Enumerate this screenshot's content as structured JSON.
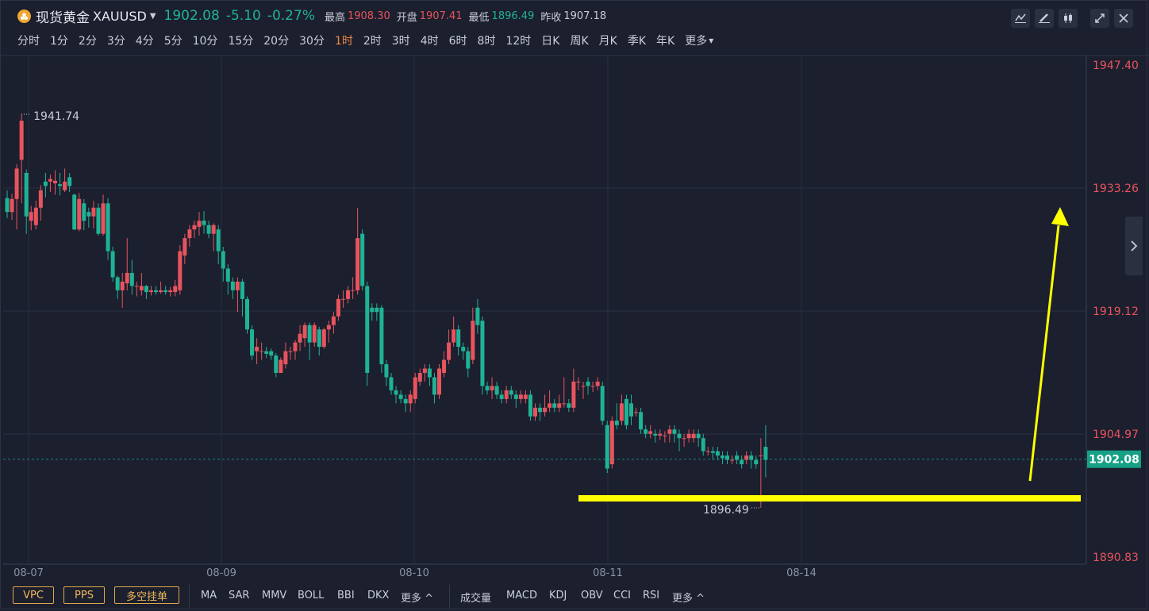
{
  "header": {
    "symbol_name": "现货黄金",
    "symbol_code": "XAUUSD",
    "price": "1902.08",
    "change": "-5.10",
    "change_pct": "-0.27%",
    "high_label": "最高",
    "high": "1908.30",
    "open_label": "开盘",
    "open": "1907.41",
    "low_label": "最低",
    "low": "1896.49",
    "prev_close_label": "昨收",
    "prev_close": "1907.18"
  },
  "toolbar": {
    "icons": [
      "line-chart-icon",
      "draw-pen-icon",
      "candlestick-icon",
      "fullscreen-icon",
      "close-icon"
    ]
  },
  "periods": {
    "items": [
      "分时",
      "1分",
      "2分",
      "3分",
      "4分",
      "5分",
      "10分",
      "15分",
      "20分",
      "30分",
      "1时",
      "2时",
      "3时",
      "4时",
      "6时",
      "8时",
      "12时",
      "日K",
      "周K",
      "月K",
      "季K",
      "年K",
      "更多"
    ],
    "active": "1时"
  },
  "chart_data": {
    "type": "candlestick",
    "y_ticks": [
      "1947.40",
      "1933.26",
      "1919.12",
      "1904.97",
      "1890.83"
    ],
    "ylim": [
      1890.83,
      1947.4
    ],
    "x_ticks": [
      "08-07",
      "08-09",
      "08-10",
      "08-11",
      "08-14"
    ],
    "current_price": "1902.08",
    "period_high_label": "1941.74",
    "period_low_label": "1896.49",
    "colors": {
      "up": "#e8545e",
      "down": "#1fb396",
      "annotation": "#ffff00",
      "grid": "#283040"
    },
    "candles": [
      [
        1932.1,
        1930.5,
        1933.0,
        1929.8
      ],
      [
        1930.5,
        1932.0,
        1932.6,
        1929.6
      ],
      [
        1932.0,
        1935.5,
        1936.0,
        1928.5
      ],
      [
        1936.5,
        1941.0,
        1941.7,
        1931.5
      ],
      [
        1935.0,
        1930.0,
        1935.4,
        1928.0
      ],
      [
        1929.5,
        1930.5,
        1931.2,
        1928.4
      ],
      [
        1929.0,
        1931.0,
        1931.8,
        1928.5
      ],
      [
        1931.0,
        1933.0,
        1933.6,
        1929.5
      ],
      [
        1934.0,
        1933.5,
        1935.0,
        1932.2
      ],
      [
        1934.0,
        1934.3,
        1934.8,
        1932.8
      ],
      [
        1933.8,
        1934.1,
        1935.3,
        1932.5
      ],
      [
        1933.7,
        1933.5,
        1935.0,
        1932.4
      ],
      [
        1933.0,
        1934.0,
        1935.5,
        1932.8
      ],
      [
        1934.5,
        1933.5,
        1935.0,
        1932.8
      ],
      [
        1932.5,
        1928.5,
        1932.6,
        1928.4
      ],
      [
        1928.5,
        1932.0,
        1932.7,
        1928.3
      ],
      [
        1931.5,
        1929.5,
        1932.0,
        1928.4
      ],
      [
        1930.5,
        1930.0,
        1931.0,
        1928.7
      ],
      [
        1930.0,
        1931.0,
        1931.8,
        1928.6
      ],
      [
        1931.0,
        1928.0,
        1931.5,
        1927.8
      ],
      [
        1928.0,
        1931.5,
        1932.5,
        1927.8
      ],
      [
        1931.5,
        1926.0,
        1932.1,
        1925.0
      ],
      [
        1926.0,
        1923.0,
        1926.5,
        1922.5
      ],
      [
        1923.0,
        1921.5,
        1923.2,
        1920.5
      ],
      [
        1921.5,
        1922.5,
        1923.5,
        1919.5
      ],
      [
        1922.3,
        1923.5,
        1927.5,
        1921.5
      ],
      [
        1923.5,
        1922.0,
        1925.0,
        1921.0
      ],
      [
        1922.0,
        1922.0,
        1922.5,
        1920.8
      ],
      [
        1921.5,
        1922.0,
        1923.5,
        1920.9
      ],
      [
        1922.0,
        1921.3,
        1922.1,
        1920.5
      ],
      [
        1921.3,
        1921.5,
        1922.0,
        1920.9
      ],
      [
        1921.5,
        1921.3,
        1922.0,
        1921.0
      ],
      [
        1921.3,
        1921.5,
        1922.5,
        1921.1
      ],
      [
        1921.5,
        1921.3,
        1922.0,
        1921.0
      ],
      [
        1921.3,
        1921.5,
        1921.9,
        1920.8
      ],
      [
        1921.3,
        1922.0,
        1922.7,
        1920.8
      ],
      [
        1921.5,
        1926.0,
        1926.7,
        1921.0
      ],
      [
        1925.5,
        1927.5,
        1928.0,
        1924.5
      ],
      [
        1927.5,
        1928.5,
        1929.0,
        1926.5
      ],
      [
        1928.5,
        1929.0,
        1929.5,
        1927.5
      ],
      [
        1928.8,
        1929.5,
        1930.5,
        1927.8
      ],
      [
        1929.5,
        1929.0,
        1930.6,
        1928.0
      ],
      [
        1929.0,
        1928.0,
        1929.5,
        1927.5
      ],
      [
        1928.0,
        1929.0,
        1929.2,
        1926.0
      ],
      [
        1928.5,
        1926.0,
        1929.0,
        1924.5
      ],
      [
        1926.0,
        1924.0,
        1926.5,
        1922.5
      ],
      [
        1924.0,
        1922.5,
        1924.5,
        1921.0
      ],
      [
        1922.5,
        1921.5,
        1923.0,
        1920.5
      ],
      [
        1921.5,
        1922.5,
        1923.0,
        1919.0
      ],
      [
        1922.5,
        1920.5,
        1922.8,
        1918.5
      ],
      [
        1920.5,
        1917.0,
        1920.8,
        1916.5
      ],
      [
        1917.0,
        1914.0,
        1917.5,
        1913.5
      ],
      [
        1914.5,
        1915.0,
        1916.0,
        1913.0
      ],
      [
        1914.5,
        1914.5,
        1915.5,
        1913.5
      ],
      [
        1914.5,
        1914.2,
        1915.0,
        1913.7
      ],
      [
        1914.5,
        1914.0,
        1914.8,
        1913.5
      ],
      [
        1914.0,
        1912.0,
        1914.3,
        1911.5
      ],
      [
        1912.0,
        1913.5,
        1913.8,
        1912.0
      ],
      [
        1913.0,
        1914.5,
        1915.5,
        1912.5
      ],
      [
        1914.5,
        1914.5,
        1915.0,
        1913.5
      ],
      [
        1914.5,
        1915.5,
        1915.8,
        1913.5
      ],
      [
        1915.5,
        1916.5,
        1917.5,
        1914.5
      ],
      [
        1916.0,
        1917.5,
        1917.8,
        1915.0
      ],
      [
        1917.5,
        1915.5,
        1917.8,
        1913.5
      ],
      [
        1915.5,
        1917.5,
        1917.8,
        1915.0
      ],
      [
        1917.0,
        1915.0,
        1917.3,
        1914.0
      ],
      [
        1915.0,
        1917.0,
        1917.2,
        1914.8
      ],
      [
        1917.0,
        1917.5,
        1918.0,
        1915.5
      ],
      [
        1917.5,
        1918.5,
        1919.0,
        1916.5
      ],
      [
        1918.5,
        1920.5,
        1921.0,
        1918.0
      ],
      [
        1920.5,
        1920.5,
        1921.5,
        1919.5
      ],
      [
        1920.5,
        1921.5,
        1922.0,
        1920.0
      ],
      [
        1921.5,
        1921.5,
        1923.0,
        1920.5
      ],
      [
        1921.5,
        1927.5,
        1931.0,
        1921.0
      ],
      [
        1928.0,
        1922.0,
        1928.5,
        1921.5
      ],
      [
        1922.0,
        1912.0,
        1922.5,
        1910.5
      ],
      [
        1919.5,
        1919.0,
        1920.0,
        1918.0
      ],
      [
        1919.5,
        1919.0,
        1920.0,
        1918.0
      ],
      [
        1919.5,
        1913.0,
        1919.8,
        1912.0
      ],
      [
        1913.0,
        1911.5,
        1913.5,
        1910.5
      ],
      [
        1911.5,
        1910.0,
        1912.0,
        1909.5
      ],
      [
        1910.0,
        1909.5,
        1910.5,
        1908.5
      ],
      [
        1909.5,
        1909.0,
        1910.0,
        1908.5
      ],
      [
        1909.0,
        1908.5,
        1909.5,
        1907.5
      ],
      [
        1908.5,
        1909.5,
        1910.0,
        1907.5
      ],
      [
        1909.0,
        1911.5,
        1912.0,
        1908.5
      ],
      [
        1911.0,
        1912.0,
        1912.5,
        1910.5
      ],
      [
        1912.0,
        1912.5,
        1913.0,
        1911.0
      ],
      [
        1912.5,
        1911.5,
        1913.0,
        1910.5
      ],
      [
        1911.5,
        1909.5,
        1912.0,
        1908.5
      ],
      [
        1909.5,
        1912.5,
        1913.0,
        1909.0
      ],
      [
        1912.0,
        1913.5,
        1914.5,
        1911.5
      ],
      [
        1913.5,
        1915.5,
        1917.0,
        1913.0
      ],
      [
        1915.5,
        1917.0,
        1918.5,
        1915.0
      ],
      [
        1917.0,
        1915.0,
        1917.5,
        1914.0
      ],
      [
        1915.0,
        1914.5,
        1915.5,
        1913.5
      ],
      [
        1914.5,
        1912.5,
        1915.0,
        1911.5
      ],
      [
        1913.5,
        1918.0,
        1919.5,
        1913.0
      ],
      [
        1919.5,
        1917.5,
        1920.5,
        1916.5
      ],
      [
        1918.0,
        1910.5,
        1918.5,
        1909.5
      ],
      [
        1910.5,
        1910.0,
        1911.0,
        1909.5
      ],
      [
        1910.0,
        1910.5,
        1911.5,
        1909.0
      ],
      [
        1910.5,
        1909.5,
        1911.0,
        1909.0
      ],
      [
        1909.5,
        1909.0,
        1910.0,
        1908.5
      ],
      [
        1909.0,
        1910.0,
        1910.5,
        1908.5
      ],
      [
        1910.0,
        1909.5,
        1910.5,
        1909.0
      ],
      [
        1909.5,
        1909.0,
        1910.0,
        1908.0
      ],
      [
        1909.0,
        1909.5,
        1910.0,
        1908.5
      ],
      [
        1909.0,
        1909.5,
        1910.0,
        1908.5
      ],
      [
        1909.5,
        1907.0,
        1910.0,
        1906.5
      ],
      [
        1907.0,
        1908.0,
        1908.5,
        1906.5
      ],
      [
        1908.0,
        1907.5,
        1908.5,
        1906.5
      ],
      [
        1907.5,
        1908.0,
        1909.5,
        1907.0
      ],
      [
        1908.0,
        1908.5,
        1910.0,
        1907.5
      ],
      [
        1908.5,
        1908.0,
        1909.0,
        1907.5
      ],
      [
        1908.0,
        1908.5,
        1909.5,
        1907.5
      ],
      [
        1908.5,
        1908.5,
        1911.5,
        1908.0
      ],
      [
        1908.5,
        1908.0,
        1909.0,
        1907.5
      ],
      [
        1908.0,
        1911.0,
        1912.5,
        1907.5
      ],
      [
        1911.0,
        1911.0,
        1911.5,
        1910.0
      ],
      [
        1910.5,
        1910.5,
        1911.0,
        1909.0
      ],
      [
        1911.0,
        1910.5,
        1911.5,
        1909.5
      ],
      [
        1910.5,
        1910.5,
        1911.0,
        1909.8
      ],
      [
        1910.5,
        1911.0,
        1911.5,
        1910.0
      ],
      [
        1910.5,
        1906.5,
        1911.0,
        1906.0
      ],
      [
        1906.0,
        1901.0,
        1906.5,
        1900.5
      ],
      [
        1901.5,
        1906.5,
        1907.0,
        1901.0
      ],
      [
        1906.5,
        1906.0,
        1908.5,
        1905.5
      ],
      [
        1906.5,
        1908.5,
        1909.5,
        1906.0
      ],
      [
        1909.0,
        1906.0,
        1909.5,
        1905.5
      ],
      [
        1908.5,
        1907.0,
        1909.5,
        1906.0
      ],
      [
        1907.5,
        1907.5,
        1908.0,
        1907.0
      ],
      [
        1907.5,
        1905.5,
        1908.0,
        1905.0
      ],
      [
        1905.5,
        1905.0,
        1906.0,
        1904.5
      ],
      [
        1905.0,
        1905.3,
        1906.0,
        1904.5
      ],
      [
        1905.0,
        1904.8,
        1905.5,
        1904.0
      ],
      [
        1904.8,
        1905.0,
        1905.5,
        1904.3
      ],
      [
        1904.8,
        1904.8,
        1905.3,
        1904.0
      ],
      [
        1905.0,
        1905.5,
        1906.0,
        1904.0
      ],
      [
        1905.5,
        1905.0,
        1906.0,
        1904.0
      ],
      [
        1905.0,
        1904.5,
        1905.5,
        1903.0
      ],
      [
        1904.5,
        1904.5,
        1905.0,
        1903.5
      ],
      [
        1904.5,
        1905.0,
        1905.5,
        1904.0
      ],
      [
        1904.5,
        1905.0,
        1905.5,
        1904.0
      ],
      [
        1905.0,
        1904.5,
        1905.5,
        1903.5
      ],
      [
        1904.5,
        1903.0,
        1905.0,
        1902.5
      ],
      [
        1903.0,
        1903.0,
        1903.5,
        1902.5
      ],
      [
        1903.0,
        1902.8,
        1903.5,
        1902.0
      ],
      [
        1903.0,
        1902.5,
        1903.5,
        1902.0
      ],
      [
        1902.5,
        1902.2,
        1903.0,
        1901.5
      ],
      [
        1902.5,
        1902.0,
        1903.0,
        1901.5
      ],
      [
        1902.0,
        1902.0,
        1902.5,
        1901.5
      ],
      [
        1902.5,
        1902.0,
        1903.0,
        1901.5
      ],
      [
        1902.0,
        1901.5,
        1902.5,
        1901.0
      ],
      [
        1902.0,
        1902.5,
        1903.0,
        1901.5
      ],
      [
        1902.5,
        1902.0,
        1903.0,
        1901.0
      ],
      [
        1902.0,
        1901.5,
        1902.5,
        1901.0
      ],
      [
        1902.5,
        1902.5,
        1904.5,
        1896.5
      ],
      [
        1903.5,
        1902.0,
        1906.0,
        1900.0
      ]
    ]
  },
  "right_panel": {
    "tab_icon": "chevron-right-icon"
  },
  "footer": {
    "buttons": [
      "VPC",
      "PPS",
      "多空挂单"
    ],
    "main_indicators": [
      "MA",
      "SAR",
      "MMV",
      "BOLL",
      "BBI",
      "DKX",
      "更多 ^"
    ],
    "sub_indicators": [
      "成交量",
      "MACD",
      "KDJ",
      "OBV",
      "CCI",
      "RSI",
      "更多 ^"
    ]
  }
}
